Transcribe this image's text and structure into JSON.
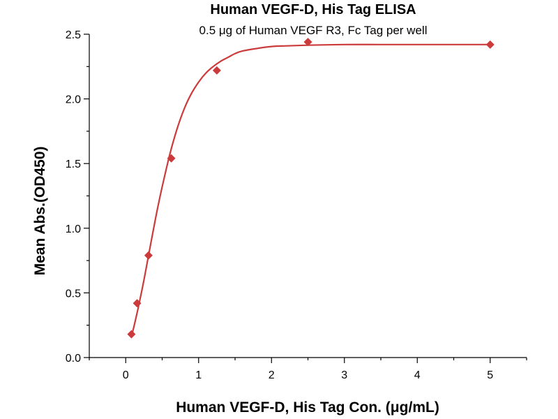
{
  "chart_data": {
    "type": "scatter",
    "title": "Human VEGF-D, His Tag ELISA",
    "subtitle": "0.5 μg of Human VEGF R3, Fc Tag per well",
    "xlabel": "Human VEGF-D, His Tag Con. (μg/mL)",
    "ylabel": "Mean Abs.(OD450)",
    "xlim": [
      -0.5,
      5.5
    ],
    "ylim": [
      0.0,
      2.5
    ],
    "xticks": [
      0,
      1,
      2,
      3,
      4,
      5
    ],
    "yticks": [
      0.0,
      0.5,
      1.0,
      1.5,
      2.0,
      2.5
    ],
    "xtick_labels": [
      "0",
      "1",
      "2",
      "3",
      "4",
      "5"
    ],
    "ytick_labels": [
      "0.0",
      "0.5",
      "1.0",
      "1.5",
      "2.0",
      "2.5"
    ],
    "grid": false,
    "legend": "none",
    "color": "#cc3b3b",
    "series": [
      {
        "x": [
          0.078,
          0.156,
          0.3125,
          0.625,
          1.25,
          2.5,
          5.0
        ],
        "y": [
          0.18,
          0.42,
          0.79,
          1.54,
          2.22,
          2.44,
          2.42
        ]
      }
    ],
    "fit_curve": {
      "x": [
        0.078,
        0.1,
        0.15,
        0.2,
        0.25,
        0.3,
        0.35,
        0.4,
        0.45,
        0.5,
        0.6,
        0.7,
        0.8,
        0.9,
        1.0,
        1.1,
        1.2,
        1.3,
        1.4,
        1.5,
        1.6,
        1.8,
        2.0,
        2.2,
        2.5,
        3.0,
        3.5,
        4.0,
        4.5,
        5.0
      ],
      "y": [
        0.16,
        0.21,
        0.33,
        0.46,
        0.6,
        0.75,
        0.9,
        1.05,
        1.19,
        1.32,
        1.56,
        1.76,
        1.92,
        2.04,
        2.13,
        2.2,
        2.25,
        2.29,
        2.32,
        2.35,
        2.37,
        2.39,
        2.405,
        2.41,
        2.415,
        2.42,
        2.42,
        2.42,
        2.42,
        2.42
      ]
    }
  }
}
